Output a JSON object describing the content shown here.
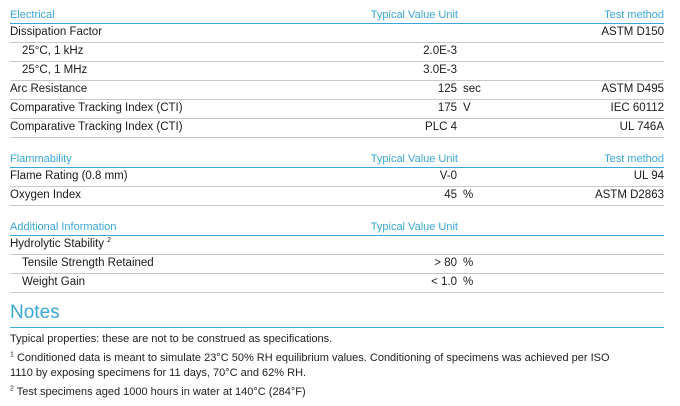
{
  "columns": {
    "typical_value_unit": "Typical Value Unit",
    "test_method": "Test method"
  },
  "electrical": {
    "title": "Electrical",
    "rows": [
      {
        "name": "Dissipation Factor",
        "value": "",
        "unit": "",
        "method": "ASTM D150"
      },
      {
        "name": "25°C, 1 kHz",
        "value": "2.0E-3",
        "unit": "",
        "method": ""
      },
      {
        "name": "25°C, 1 MHz",
        "value": "3.0E-3",
        "unit": "",
        "method": ""
      },
      {
        "name": "Arc Resistance",
        "value": "125",
        "unit": "sec",
        "method": "ASTM D495"
      },
      {
        "name": "Comparative Tracking Index (CTI)",
        "value": "175",
        "unit": "V",
        "method": "IEC 60112"
      },
      {
        "name": "Comparative Tracking Index (CTI)",
        "value": "PLC 4",
        "unit": "",
        "method": "UL 746A"
      }
    ]
  },
  "flammability": {
    "title": "Flammability",
    "rows": [
      {
        "name": "Flame Rating (0.8 mm)",
        "value": "V-0",
        "unit": "",
        "method": "UL 94"
      },
      {
        "name": "Oxygen Index",
        "value": "45",
        "unit": "%",
        "method": "ASTM D2863"
      }
    ]
  },
  "additional": {
    "title": "Additional Information",
    "rows": [
      {
        "name": "Hydrolytic Stability",
        "sup": "2",
        "value": "",
        "unit": "",
        "method": ""
      },
      {
        "name": "Tensile Strength Retained",
        "value": "> 80",
        "unit": "%",
        "method": ""
      },
      {
        "name": "Weight Gain",
        "value": "< 1.0",
        "unit": "%",
        "method": ""
      }
    ]
  },
  "notes": {
    "title": "Notes",
    "typical": "Typical properties: these are not to be construed as specifications.",
    "note1_sup": "1",
    "note1_line1": "Conditioned data is meant to simulate 23°C 50% RH equilibrium values. Conditioning of specimens was achieved per ISO",
    "note1_line2": "1110 by exposing specimens for 11 days, 70°C and 62% RH.",
    "note2_sup": "2",
    "note2": "Test specimens aged 1000 hours in water at 140°C (284°F)"
  },
  "colors": {
    "accent": "#3aa7d9",
    "text": "#1a1a1a",
    "rule": "#c9c9c9"
  }
}
